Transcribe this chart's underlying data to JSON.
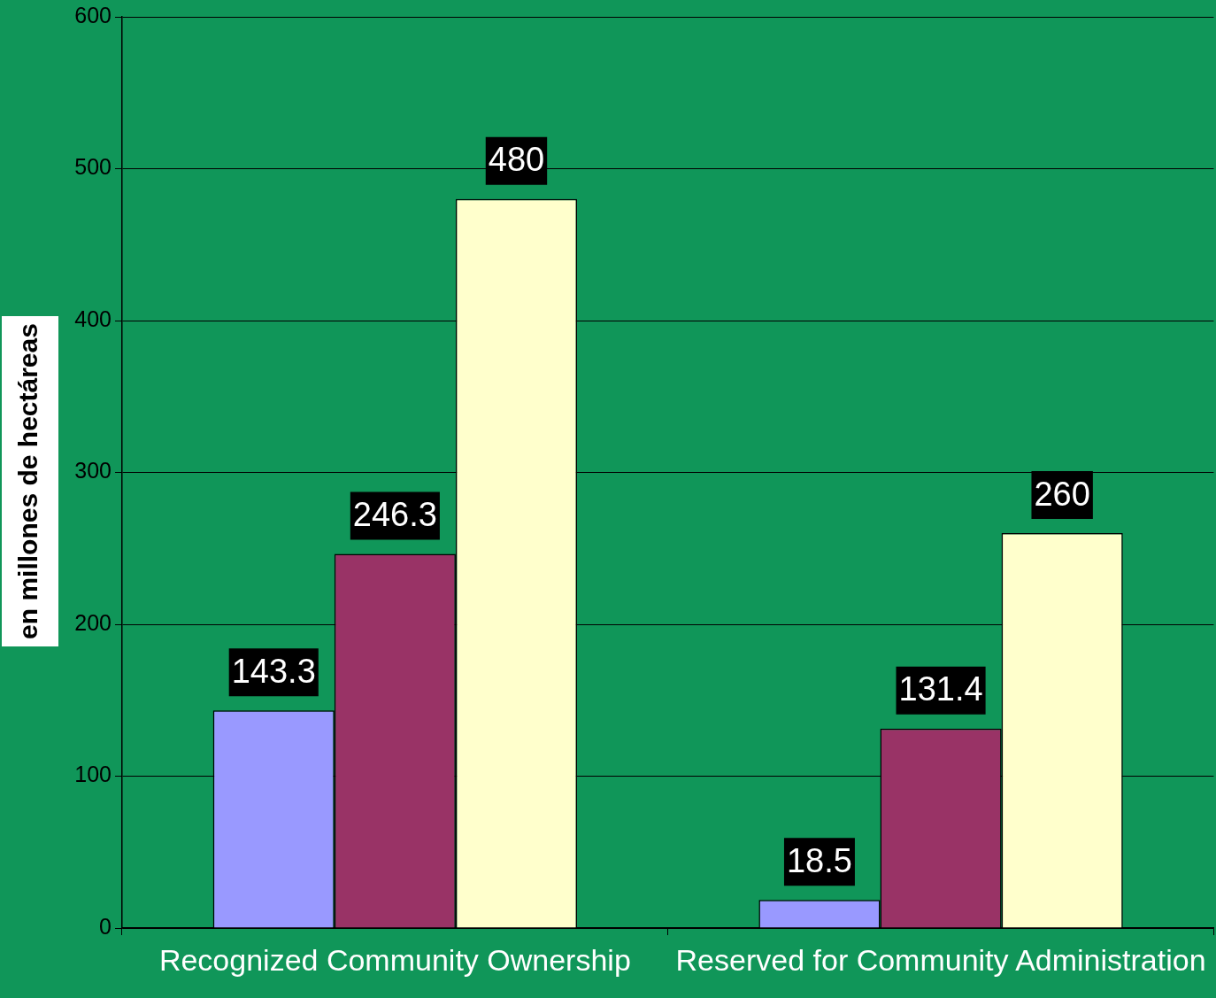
{
  "chart_data": {
    "type": "bar",
    "ylabel": "en millones de hectáreas",
    "categories": [
      "Recognized Community Ownership",
      "Reserved for Community Administration"
    ],
    "series": [
      {
        "color": "#9999ff",
        "values": [
          143.3,
          18.5
        ]
      },
      {
        "color": "#993366",
        "values": [
          246.3,
          131.4
        ]
      },
      {
        "color": "#ffffcc",
        "values": [
          480,
          260
        ]
      }
    ],
    "ylim": [
      0,
      600
    ],
    "yticks": [
      0,
      100,
      200,
      300,
      400,
      500,
      600
    ],
    "grid": "y",
    "legend": false,
    "data_labels": true
  }
}
